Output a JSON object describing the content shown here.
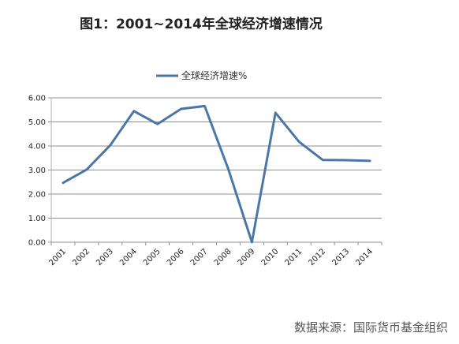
{
  "chart_data": {
    "type": "line",
    "title": "图1：2001~2014年全球经济增速情况",
    "xlabel": "",
    "ylabel": "",
    "categories": [
      "2001",
      "2002",
      "2003",
      "2004",
      "2005",
      "2006",
      "2007",
      "2008",
      "2009",
      "2010",
      "2011",
      "2012",
      "2013",
      "2014"
    ],
    "series": [
      {
        "name": "全球经济增速%",
        "color": "#4A76A8",
        "values": [
          2.47,
          3.02,
          4.03,
          5.45,
          4.91,
          5.54,
          5.66,
          3.04,
          0.0,
          5.38,
          4.17,
          3.42,
          3.41,
          3.38
        ]
      }
    ],
    "ylim": [
      0,
      6
    ],
    "yticks": [
      "0.00",
      "1.00",
      "2.00",
      "3.00",
      "4.00",
      "5.00",
      "6.00"
    ],
    "grid": true,
    "legend_position": "top-center",
    "source": "数据来源：国际货币基金组织"
  }
}
